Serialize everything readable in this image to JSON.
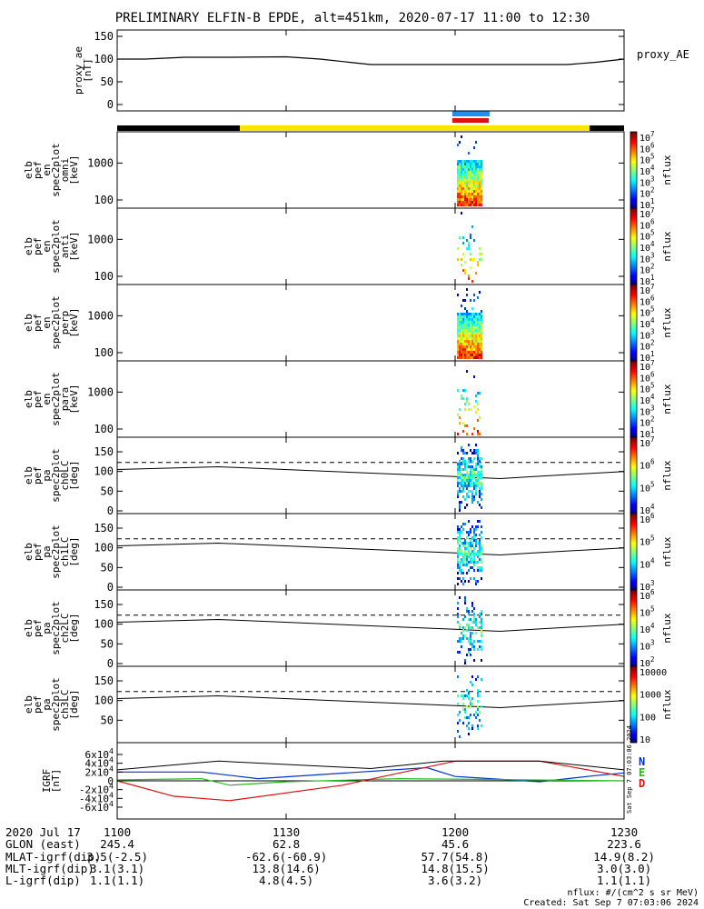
{
  "title": "PRELIMINARY ELFIN-B EPDE, alt=451km, 2020-07-17 11:00 to 12:30",
  "colors": {
    "trace": "#000000",
    "dashed": "#000000",
    "flag_black": "#000000",
    "flag_yellow": "#ffe400",
    "bar_blue": "#1f8ff2",
    "bar_red": "#e01010",
    "igrf_n": "#0033cc",
    "igrf_e": "#22bb22",
    "igrf_d": "#dd1111"
  },
  "chart_data": [
    {
      "type": "line",
      "panel": "proxy_ae",
      "ylabel": [
        "proxy_ae",
        "[nT]"
      ],
      "right_label": "proxy_AE",
      "y_ticks": [
        "150",
        "100",
        "50",
        "0"
      ],
      "ylim": [
        0,
        150
      ],
      "series": [
        {
          "x": [
            "11:00",
            "11:05",
            "11:12",
            "11:20",
            "11:30",
            "11:36",
            "11:45",
            "11:55",
            "12:05",
            "12:15",
            "12:20",
            "12:25",
            "12:30"
          ],
          "values": [
            100,
            100,
            104,
            104,
            105,
            100,
            88,
            88,
            88,
            88,
            88,
            93,
            100
          ]
        }
      ]
    },
    {
      "type": "heatmap",
      "panel": "spec_omni",
      "ylabel": [
        "elb",
        "pef",
        "en",
        "spec2plot",
        "omni",
        "[keV]"
      ],
      "y_ticks": [
        "1000",
        "100"
      ],
      "yscale": "log",
      "colorbar_ticks": [
        "10^7",
        "10^6",
        "10^5",
        "10^4",
        "10^3",
        "10^2",
        "10^1"
      ],
      "colorbar_label": "nflux"
    },
    {
      "type": "heatmap",
      "panel": "spec_anti",
      "ylabel": [
        "elb",
        "pef",
        "en",
        "spec2plot",
        "anti",
        "[keV]"
      ],
      "y_ticks": [
        "1000",
        "100"
      ],
      "yscale": "log",
      "colorbar_ticks": [
        "10^7",
        "10^6",
        "10^5",
        "10^4",
        "10^3",
        "10^2",
        "10^1"
      ],
      "colorbar_label": "nflux"
    },
    {
      "type": "heatmap",
      "panel": "spec_perp",
      "ylabel": [
        "elb",
        "pef",
        "en",
        "spec2plot",
        "perp",
        "[keV]"
      ],
      "y_ticks": [
        "1000",
        "100"
      ],
      "yscale": "log",
      "colorbar_ticks": [
        "10^7",
        "10^6",
        "10^5",
        "10^4",
        "10^3",
        "10^2",
        "10^1"
      ],
      "colorbar_label": "nflux"
    },
    {
      "type": "heatmap",
      "panel": "spec_para",
      "ylabel": [
        "elb",
        "pef",
        "en",
        "spec2plot",
        "para",
        "[keV]"
      ],
      "y_ticks": [
        "1000",
        "100"
      ],
      "yscale": "log",
      "colorbar_ticks": [
        "10^7",
        "10^6",
        "10^5",
        "10^4",
        "10^3",
        "10^2",
        "10^1"
      ],
      "colorbar_label": "nflux"
    },
    {
      "type": "heatmap",
      "panel": "pa_ch0LC",
      "ylabel": [
        "elb",
        "pef",
        "pa",
        "spec2plot",
        "ch0LC",
        "[deg]"
      ],
      "y_ticks": [
        "150",
        "100",
        "50",
        "0"
      ],
      "ylim": [
        0,
        180
      ],
      "colorbar_ticks": [
        "10^7",
        "10^6",
        "10^5",
        "10^4"
      ],
      "colorbar_label": "nflux"
    },
    {
      "type": "heatmap",
      "panel": "pa_ch1LC",
      "ylabel": [
        "elb",
        "pef",
        "pa",
        "spec2plot",
        "ch1LC",
        "[deg]"
      ],
      "y_ticks": [
        "150",
        "100",
        "50",
        "0"
      ],
      "ylim": [
        0,
        180
      ],
      "colorbar_ticks": [
        "10^6",
        "10^5",
        "10^4",
        "10^3"
      ],
      "colorbar_label": "nflux"
    },
    {
      "type": "heatmap",
      "panel": "pa_ch2LC",
      "ylabel": [
        "elb",
        "pef",
        "pa",
        "spec2plot",
        "ch2LC",
        "[deg]"
      ],
      "y_ticks": [
        "150",
        "100",
        "50",
        "0"
      ],
      "ylim": [
        0,
        180
      ],
      "colorbar_ticks": [
        "10^6",
        "10^5",
        "10^4",
        "10^3",
        "10^2"
      ],
      "colorbar_label": "nflux"
    },
    {
      "type": "heatmap",
      "panel": "pa_ch3LC",
      "ylabel": [
        "elb",
        "pef",
        "pa",
        "spec2plot",
        "ch3LC",
        "[deg]"
      ],
      "y_ticks": [
        "150",
        "100",
        "50"
      ],
      "ylim": [
        0,
        180
      ],
      "colorbar_ticks": [
        "10000",
        "1000",
        "100",
        "10"
      ],
      "colorbar_label": "nflux"
    },
    {
      "type": "line",
      "panel": "igrf",
      "ylabel": [
        "IGRF",
        "[nT]"
      ],
      "y_ticks": [
        "6x10^4",
        "4x10^4",
        "2x10^4",
        "0",
        "-2x10^4",
        "-4x10^4",
        "-6x10^4"
      ],
      "ylim": [
        -60000,
        60000
      ],
      "legend": [
        "N",
        "E",
        "D"
      ],
      "stamp": "Sat Sep  7 07:03:06 2024",
      "series": [
        {
          "name": "N",
          "x": [
            "11:00",
            "11:15",
            "11:25",
            "11:55",
            "12:00",
            "12:15",
            "12:25",
            "12:30"
          ],
          "values": [
            20000,
            20000,
            5000,
            30000,
            10000,
            -2000,
            12000,
            18000
          ]
        },
        {
          "name": "E",
          "x": [
            "11:00",
            "11:15",
            "11:20",
            "11:30",
            "11:50",
            "12:30"
          ],
          "values": [
            2000,
            5000,
            -10000,
            -2000,
            5000,
            0
          ]
        },
        {
          "name": "D",
          "x": [
            "11:00",
            "11:10",
            "11:20",
            "11:40",
            "12:00",
            "12:15",
            "12:30"
          ],
          "values": [
            0,
            -35000,
            -45000,
            -10000,
            45000,
            45000,
            10000
          ]
        }
      ]
    }
  ],
  "annotations": {
    "rows": [
      {
        "label": "2020 Jul 17",
        "values": [
          "1100",
          "1130",
          "1200",
          "1230"
        ]
      },
      {
        "label": "GLON (east)",
        "values": [
          "245.4",
          "62.8",
          "45.6",
          "223.6"
        ]
      },
      {
        "label": "MLAT-igrf(dip)",
        "values": [
          "3.5(-2.5)",
          "-62.6(-60.9)",
          "57.7(54.8)",
          "14.9(8.2)"
        ]
      },
      {
        "label": "MLT-igrf(dip)",
        "values": [
          "3.1(3.1)",
          "13.8(14.6)",
          "14.8(15.5)",
          "3.0(3.0)"
        ]
      },
      {
        "label": "L-igrf(dip)",
        "values": [
          "1.1(1.1)",
          "4.8(4.5)",
          "3.6(3.2)",
          "1.1(1.1)"
        ]
      }
    ],
    "footer_units": "nflux: #/(cm^2 s sr MeV)",
    "footer_created": "Created: Sat Sep  7 07:03:06 2024"
  }
}
